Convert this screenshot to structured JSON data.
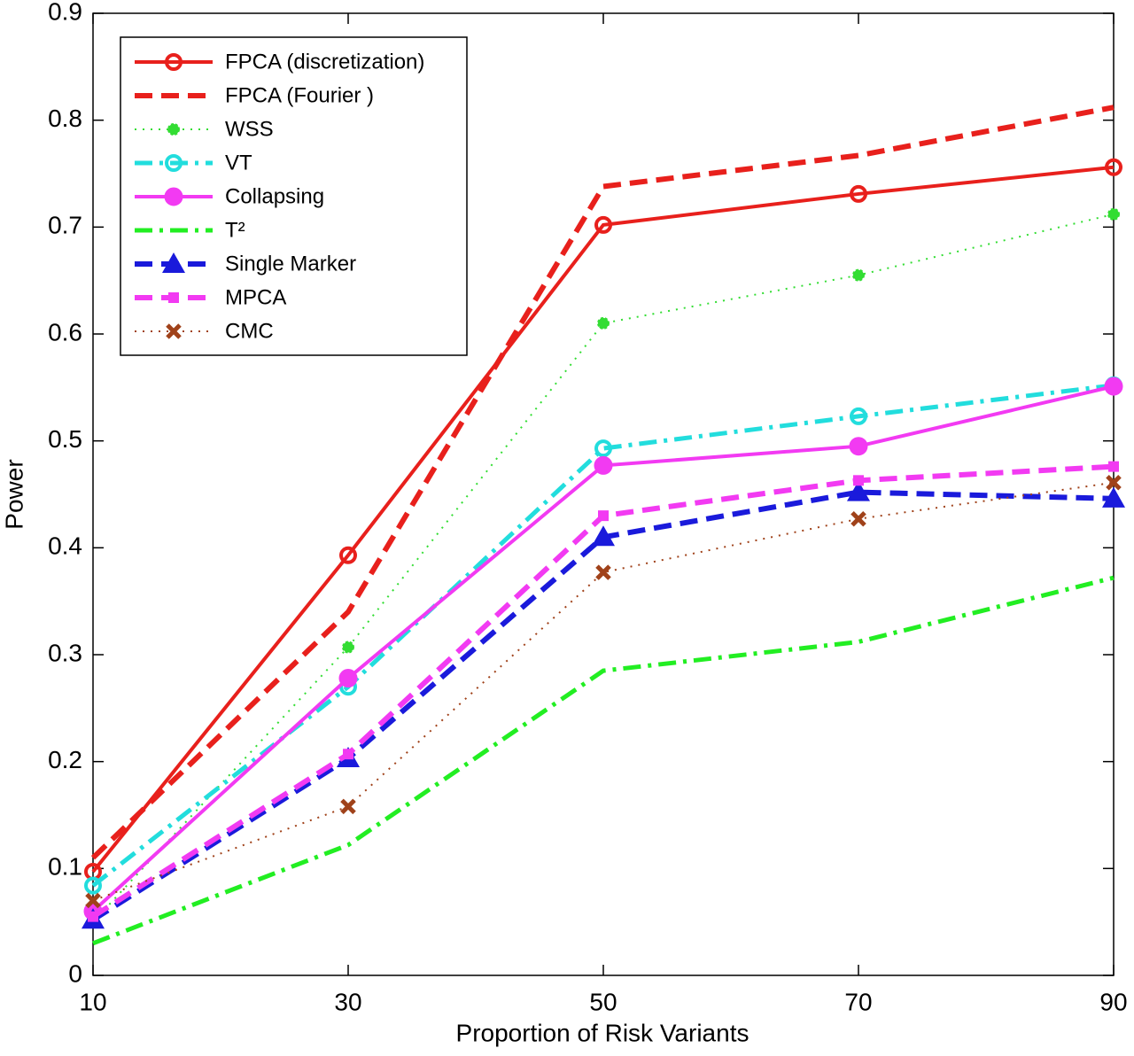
{
  "chart_data": {
    "type": "line",
    "x_label": "Proportion of Risk Variants",
    "y_label": "Power",
    "x": [
      10,
      30,
      50,
      70,
      90
    ],
    "xlim": [
      10,
      90
    ],
    "xticks": [
      10,
      30,
      50,
      70,
      90
    ],
    "ylim": [
      0,
      0.9
    ],
    "yticks": [
      0,
      0.1,
      0.2,
      0.3,
      0.4,
      0.5,
      0.6,
      0.7,
      0.8,
      0.9
    ],
    "grid": false,
    "legend_position": "upper-left",
    "series": [
      {
        "name": "FPCA (discretization)",
        "color": "#e8201c",
        "line_style": "solid",
        "marker": "open-circle",
        "values": [
          0.097,
          0.393,
          0.702,
          0.731,
          0.756
        ]
      },
      {
        "name": "FPCA (Fourier )",
        "color": "#e8201c",
        "line_style": "dashed",
        "marker": "none",
        "values": [
          0.11,
          0.34,
          0.738,
          0.767,
          0.812
        ]
      },
      {
        "name": "WSS",
        "color": "#33dd33",
        "line_style": "dotted",
        "marker": "star",
        "values": [
          0.05,
          0.307,
          0.61,
          0.655,
          0.712
        ]
      },
      {
        "name": "VT",
        "color": "#22dddd",
        "line_style": "dashdot",
        "marker": "open-circle",
        "values": [
          0.084,
          0.27,
          0.493,
          0.523,
          0.552
        ]
      },
      {
        "name": "Collapsing",
        "color": "#f23af2",
        "line_style": "solid",
        "marker": "filled-circle",
        "values": [
          0.06,
          0.278,
          0.477,
          0.495,
          0.551
        ]
      },
      {
        "name": "T²",
        "color": "#22ee22",
        "line_style": "dashdot",
        "marker": "none",
        "values": [
          0.03,
          0.122,
          0.285,
          0.312,
          0.372
        ]
      },
      {
        "name": "Single Marker",
        "color": "#1a1adb",
        "line_style": "dashed",
        "marker": "triangle",
        "values": [
          0.052,
          0.203,
          0.41,
          0.452,
          0.446
        ]
      },
      {
        "name": "MPCA",
        "color": "#f23af2",
        "line_style": "dashed",
        "marker": "square",
        "values": [
          0.055,
          0.207,
          0.43,
          0.463,
          0.476
        ]
      },
      {
        "name": "CMC",
        "color": "#a0421a",
        "line_style": "dotted",
        "marker": "x",
        "values": [
          0.07,
          0.158,
          0.377,
          0.427,
          0.461
        ]
      }
    ]
  }
}
